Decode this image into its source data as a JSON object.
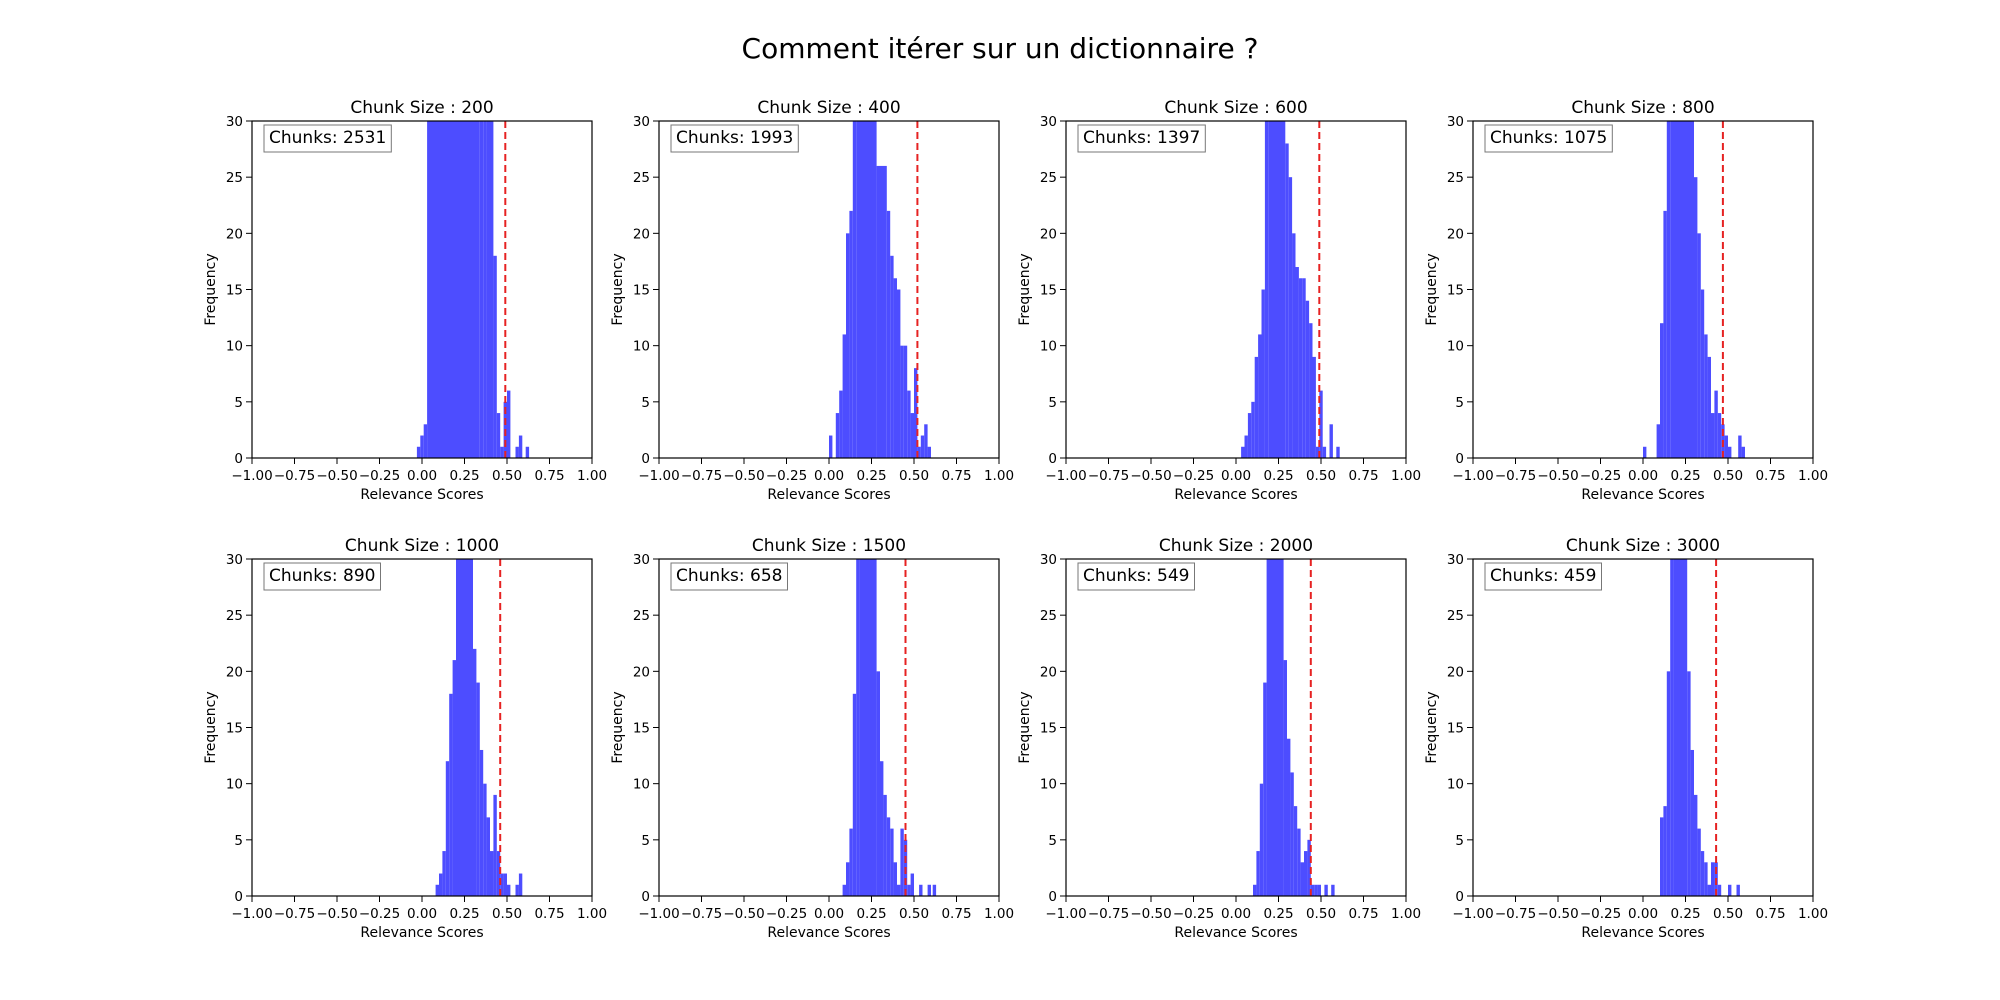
{
  "figure": {
    "title": "Comment itérer sur un dictionnaire ?",
    "bar_color": "#4d4dff",
    "threshold_color": "#e62222"
  },
  "chart_data": [
    {
      "type": "bar",
      "title": "Chunk Size : 200",
      "annotation": "Chunks: 2531",
      "xlabel": "Relevance Scores",
      "ylabel": "Frequency",
      "xlim": [
        -1.0,
        1.0
      ],
      "ylim": [
        0,
        30
      ],
      "xticks": [
        "−1.00",
        "−0.75",
        "−0.50",
        "−0.25",
        "0.00",
        "0.25",
        "0.50",
        "0.75",
        "1.00"
      ],
      "yticks": [
        "0",
        "5",
        "10",
        "15",
        "20",
        "25",
        "30"
      ],
      "threshold": 0.49,
      "bins": [
        [
          -0.03,
          -0.01,
          1
        ],
        [
          -0.01,
          0.01,
          2
        ],
        [
          0.01,
          0.03,
          3
        ],
        [
          0.03,
          0.34,
          30
        ],
        [
          0.34,
          0.36,
          30
        ],
        [
          0.36,
          0.38,
          30
        ],
        [
          0.38,
          0.4,
          30
        ],
        [
          0.4,
          0.42,
          30
        ],
        [
          0.42,
          0.44,
          18
        ],
        [
          0.44,
          0.46,
          4
        ],
        [
          0.46,
          0.48,
          1
        ],
        [
          0.48,
          0.5,
          5
        ],
        [
          0.5,
          0.52,
          6
        ],
        [
          0.53,
          0.55,
          0
        ],
        [
          0.55,
          0.57,
          1
        ],
        [
          0.57,
          0.59,
          2
        ],
        [
          0.61,
          0.63,
          1
        ]
      ]
    },
    {
      "type": "bar",
      "title": "Chunk Size : 400",
      "annotation": "Chunks: 1993",
      "xlabel": "Relevance Scores",
      "ylabel": "Frequency",
      "xlim": [
        -1.0,
        1.0
      ],
      "ylim": [
        0,
        30
      ],
      "xticks": [
        "−1.00",
        "−0.75",
        "−0.50",
        "−0.25",
        "0.00",
        "0.25",
        "0.50",
        "0.75",
        "1.00"
      ],
      "yticks": [
        "0",
        "5",
        "10",
        "15",
        "20",
        "25",
        "30"
      ],
      "threshold": 0.52,
      "bins": [
        [
          0.0,
          0.02,
          2
        ],
        [
          0.04,
          0.06,
          4
        ],
        [
          0.06,
          0.08,
          6
        ],
        [
          0.08,
          0.1,
          11
        ],
        [
          0.1,
          0.12,
          20
        ],
        [
          0.12,
          0.14,
          22
        ],
        [
          0.14,
          0.16,
          30
        ],
        [
          0.16,
          0.28,
          30
        ],
        [
          0.28,
          0.3,
          26
        ],
        [
          0.3,
          0.34,
          26
        ],
        [
          0.34,
          0.36,
          22
        ],
        [
          0.36,
          0.38,
          18
        ],
        [
          0.38,
          0.4,
          16
        ],
        [
          0.4,
          0.42,
          15
        ],
        [
          0.42,
          0.44,
          10
        ],
        [
          0.44,
          0.46,
          10
        ],
        [
          0.46,
          0.48,
          6
        ],
        [
          0.48,
          0.5,
          4
        ],
        [
          0.5,
          0.52,
          8
        ],
        [
          0.52,
          0.54,
          1
        ],
        [
          0.54,
          0.56,
          2
        ],
        [
          0.56,
          0.58,
          3
        ],
        [
          0.58,
          0.6,
          1
        ]
      ]
    },
    {
      "type": "bar",
      "title": "Chunk Size : 600",
      "annotation": "Chunks: 1397",
      "xlabel": "Relevance Scores",
      "ylabel": "Frequency",
      "xlim": [
        -1.0,
        1.0
      ],
      "ylim": [
        0,
        30
      ],
      "xticks": [
        "−1.00",
        "−0.75",
        "−0.50",
        "−0.25",
        "0.00",
        "0.25",
        "0.50",
        "0.75",
        "1.00"
      ],
      "yticks": [
        "0",
        "5",
        "10",
        "15",
        "20",
        "25",
        "30"
      ],
      "threshold": 0.49,
      "bins": [
        [
          0.03,
          0.05,
          1
        ],
        [
          0.05,
          0.07,
          2
        ],
        [
          0.07,
          0.09,
          4
        ],
        [
          0.09,
          0.11,
          5
        ],
        [
          0.11,
          0.13,
          9
        ],
        [
          0.13,
          0.15,
          11
        ],
        [
          0.15,
          0.17,
          15
        ],
        [
          0.17,
          0.19,
          30
        ],
        [
          0.19,
          0.29,
          30
        ],
        [
          0.29,
          0.31,
          28
        ],
        [
          0.31,
          0.33,
          25
        ],
        [
          0.33,
          0.35,
          20
        ],
        [
          0.35,
          0.37,
          17
        ],
        [
          0.37,
          0.39,
          16
        ],
        [
          0.39,
          0.41,
          16
        ],
        [
          0.41,
          0.43,
          14
        ],
        [
          0.43,
          0.45,
          12
        ],
        [
          0.45,
          0.47,
          9
        ],
        [
          0.47,
          0.49,
          1
        ],
        [
          0.49,
          0.51,
          6
        ],
        [
          0.51,
          0.53,
          1
        ],
        [
          0.55,
          0.57,
          3
        ],
        [
          0.59,
          0.61,
          1
        ]
      ]
    },
    {
      "type": "bar",
      "title": "Chunk Size : 800",
      "annotation": "Chunks: 1075",
      "xlabel": "Relevance Scores",
      "ylabel": "Frequency",
      "xlim": [
        -1.0,
        1.0
      ],
      "ylim": [
        0,
        30
      ],
      "xticks": [
        "−1.00",
        "−0.75",
        "−0.50",
        "−0.25",
        "0.00",
        "0.25",
        "0.50",
        "0.75",
        "1.00"
      ],
      "yticks": [
        "0",
        "5",
        "10",
        "15",
        "20",
        "25",
        "30"
      ],
      "threshold": 0.47,
      "bins": [
        [
          0.0,
          0.02,
          1
        ],
        [
          0.08,
          0.1,
          3
        ],
        [
          0.1,
          0.12,
          12
        ],
        [
          0.12,
          0.14,
          22
        ],
        [
          0.14,
          0.16,
          30
        ],
        [
          0.16,
          0.3,
          30
        ],
        [
          0.3,
          0.32,
          25
        ],
        [
          0.32,
          0.34,
          20
        ],
        [
          0.34,
          0.36,
          15
        ],
        [
          0.36,
          0.38,
          11
        ],
        [
          0.38,
          0.4,
          9
        ],
        [
          0.4,
          0.42,
          4
        ],
        [
          0.42,
          0.44,
          6
        ],
        [
          0.44,
          0.46,
          4
        ],
        [
          0.46,
          0.48,
          3
        ],
        [
          0.48,
          0.5,
          2
        ],
        [
          0.5,
          0.52,
          1
        ],
        [
          0.56,
          0.58,
          2
        ],
        [
          0.58,
          0.6,
          1
        ]
      ]
    },
    {
      "type": "bar",
      "title": "Chunk Size : 1000",
      "annotation": "Chunks: 890",
      "xlabel": "Relevance Scores",
      "ylabel": "Frequency",
      "xlim": [
        -1.0,
        1.0
      ],
      "ylim": [
        0,
        30
      ],
      "xticks": [
        "−1.00",
        "−0.75",
        "−0.50",
        "−0.25",
        "0.00",
        "0.25",
        "0.50",
        "0.75",
        "1.00"
      ],
      "yticks": [
        "0",
        "5",
        "10",
        "15",
        "20",
        "25",
        "30"
      ],
      "threshold": 0.46,
      "bins": [
        [
          0.08,
          0.1,
          1
        ],
        [
          0.1,
          0.12,
          2
        ],
        [
          0.12,
          0.14,
          4
        ],
        [
          0.14,
          0.16,
          12
        ],
        [
          0.16,
          0.18,
          18
        ],
        [
          0.18,
          0.2,
          21
        ],
        [
          0.2,
          0.3,
          30
        ],
        [
          0.3,
          0.32,
          22
        ],
        [
          0.32,
          0.34,
          19
        ],
        [
          0.34,
          0.36,
          13
        ],
        [
          0.36,
          0.38,
          10
        ],
        [
          0.38,
          0.4,
          7
        ],
        [
          0.4,
          0.42,
          4
        ],
        [
          0.42,
          0.44,
          9
        ],
        [
          0.44,
          0.46,
          4
        ],
        [
          0.46,
          0.48,
          2
        ],
        [
          0.48,
          0.5,
          2
        ],
        [
          0.5,
          0.52,
          1
        ],
        [
          0.55,
          0.57,
          1
        ],
        [
          0.57,
          0.59,
          2
        ]
      ]
    },
    {
      "type": "bar",
      "title": "Chunk Size : 1500",
      "annotation": "Chunks: 658",
      "xlabel": "Relevance Scores",
      "ylabel": "Frequency",
      "xlim": [
        -1.0,
        1.0
      ],
      "ylim": [
        0,
        30
      ],
      "xticks": [
        "−1.00",
        "−0.75",
        "−0.50",
        "−0.25",
        "0.00",
        "0.25",
        "0.50",
        "0.75",
        "1.00"
      ],
      "yticks": [
        "0",
        "5",
        "10",
        "15",
        "20",
        "25",
        "30"
      ],
      "threshold": 0.45,
      "bins": [
        [
          0.08,
          0.1,
          1
        ],
        [
          0.1,
          0.12,
          3
        ],
        [
          0.12,
          0.14,
          6
        ],
        [
          0.14,
          0.16,
          18
        ],
        [
          0.16,
          0.18,
          30
        ],
        [
          0.18,
          0.28,
          30
        ],
        [
          0.28,
          0.3,
          20
        ],
        [
          0.3,
          0.32,
          12
        ],
        [
          0.32,
          0.34,
          9
        ],
        [
          0.34,
          0.36,
          7
        ],
        [
          0.36,
          0.38,
          6
        ],
        [
          0.38,
          0.4,
          3
        ],
        [
          0.4,
          0.42,
          1
        ],
        [
          0.42,
          0.44,
          6
        ],
        [
          0.44,
          0.46,
          5
        ],
        [
          0.46,
          0.48,
          1
        ],
        [
          0.48,
          0.5,
          2
        ],
        [
          0.53,
          0.55,
          1
        ],
        [
          0.58,
          0.6,
          1
        ],
        [
          0.61,
          0.63,
          1
        ]
      ]
    },
    {
      "type": "bar",
      "title": "Chunk Size : 2000",
      "annotation": "Chunks: 549",
      "xlabel": "Relevance Scores",
      "ylabel": "Frequency",
      "xlim": [
        -1.0,
        1.0
      ],
      "ylim": [
        0,
        30
      ],
      "xticks": [
        "−1.00",
        "−0.75",
        "−0.50",
        "−0.25",
        "0.00",
        "0.25",
        "0.50",
        "0.75",
        "1.00"
      ],
      "yticks": [
        "0",
        "5",
        "10",
        "15",
        "20",
        "25",
        "30"
      ],
      "threshold": 0.44,
      "bins": [
        [
          0.1,
          0.12,
          1
        ],
        [
          0.12,
          0.14,
          4
        ],
        [
          0.14,
          0.16,
          10
        ],
        [
          0.16,
          0.18,
          19
        ],
        [
          0.18,
          0.2,
          30
        ],
        [
          0.2,
          0.28,
          30
        ],
        [
          0.28,
          0.3,
          21
        ],
        [
          0.3,
          0.32,
          14
        ],
        [
          0.32,
          0.34,
          11
        ],
        [
          0.34,
          0.36,
          8
        ],
        [
          0.36,
          0.38,
          6
        ],
        [
          0.38,
          0.4,
          3
        ],
        [
          0.4,
          0.42,
          4
        ],
        [
          0.42,
          0.44,
          5
        ],
        [
          0.44,
          0.46,
          1
        ],
        [
          0.46,
          0.48,
          1
        ],
        [
          0.48,
          0.5,
          1
        ],
        [
          0.52,
          0.54,
          1
        ],
        [
          0.56,
          0.58,
          1
        ]
      ]
    },
    {
      "type": "bar",
      "title": "Chunk Size : 3000",
      "annotation": "Chunks: 459",
      "xlabel": "Relevance Scores",
      "ylabel": "Frequency",
      "xlim": [
        -1.0,
        1.0
      ],
      "ylim": [
        0,
        30
      ],
      "xticks": [
        "−1.00",
        "−0.75",
        "−0.50",
        "−0.25",
        "0.00",
        "0.25",
        "0.50",
        "0.75",
        "1.00"
      ],
      "yticks": [
        "0",
        "5",
        "10",
        "15",
        "20",
        "25",
        "30"
      ],
      "threshold": 0.43,
      "bins": [
        [
          0.1,
          0.12,
          7
        ],
        [
          0.12,
          0.14,
          8
        ],
        [
          0.14,
          0.16,
          20
        ],
        [
          0.16,
          0.18,
          30
        ],
        [
          0.18,
          0.26,
          30
        ],
        [
          0.26,
          0.28,
          20
        ],
        [
          0.28,
          0.3,
          13
        ],
        [
          0.3,
          0.32,
          9
        ],
        [
          0.32,
          0.34,
          6
        ],
        [
          0.34,
          0.36,
          4
        ],
        [
          0.36,
          0.38,
          3
        ],
        [
          0.38,
          0.4,
          1
        ],
        [
          0.4,
          0.42,
          3
        ],
        [
          0.42,
          0.44,
          3
        ],
        [
          0.44,
          0.46,
          1
        ],
        [
          0.5,
          0.52,
          1
        ],
        [
          0.55,
          0.57,
          1
        ]
      ]
    }
  ]
}
